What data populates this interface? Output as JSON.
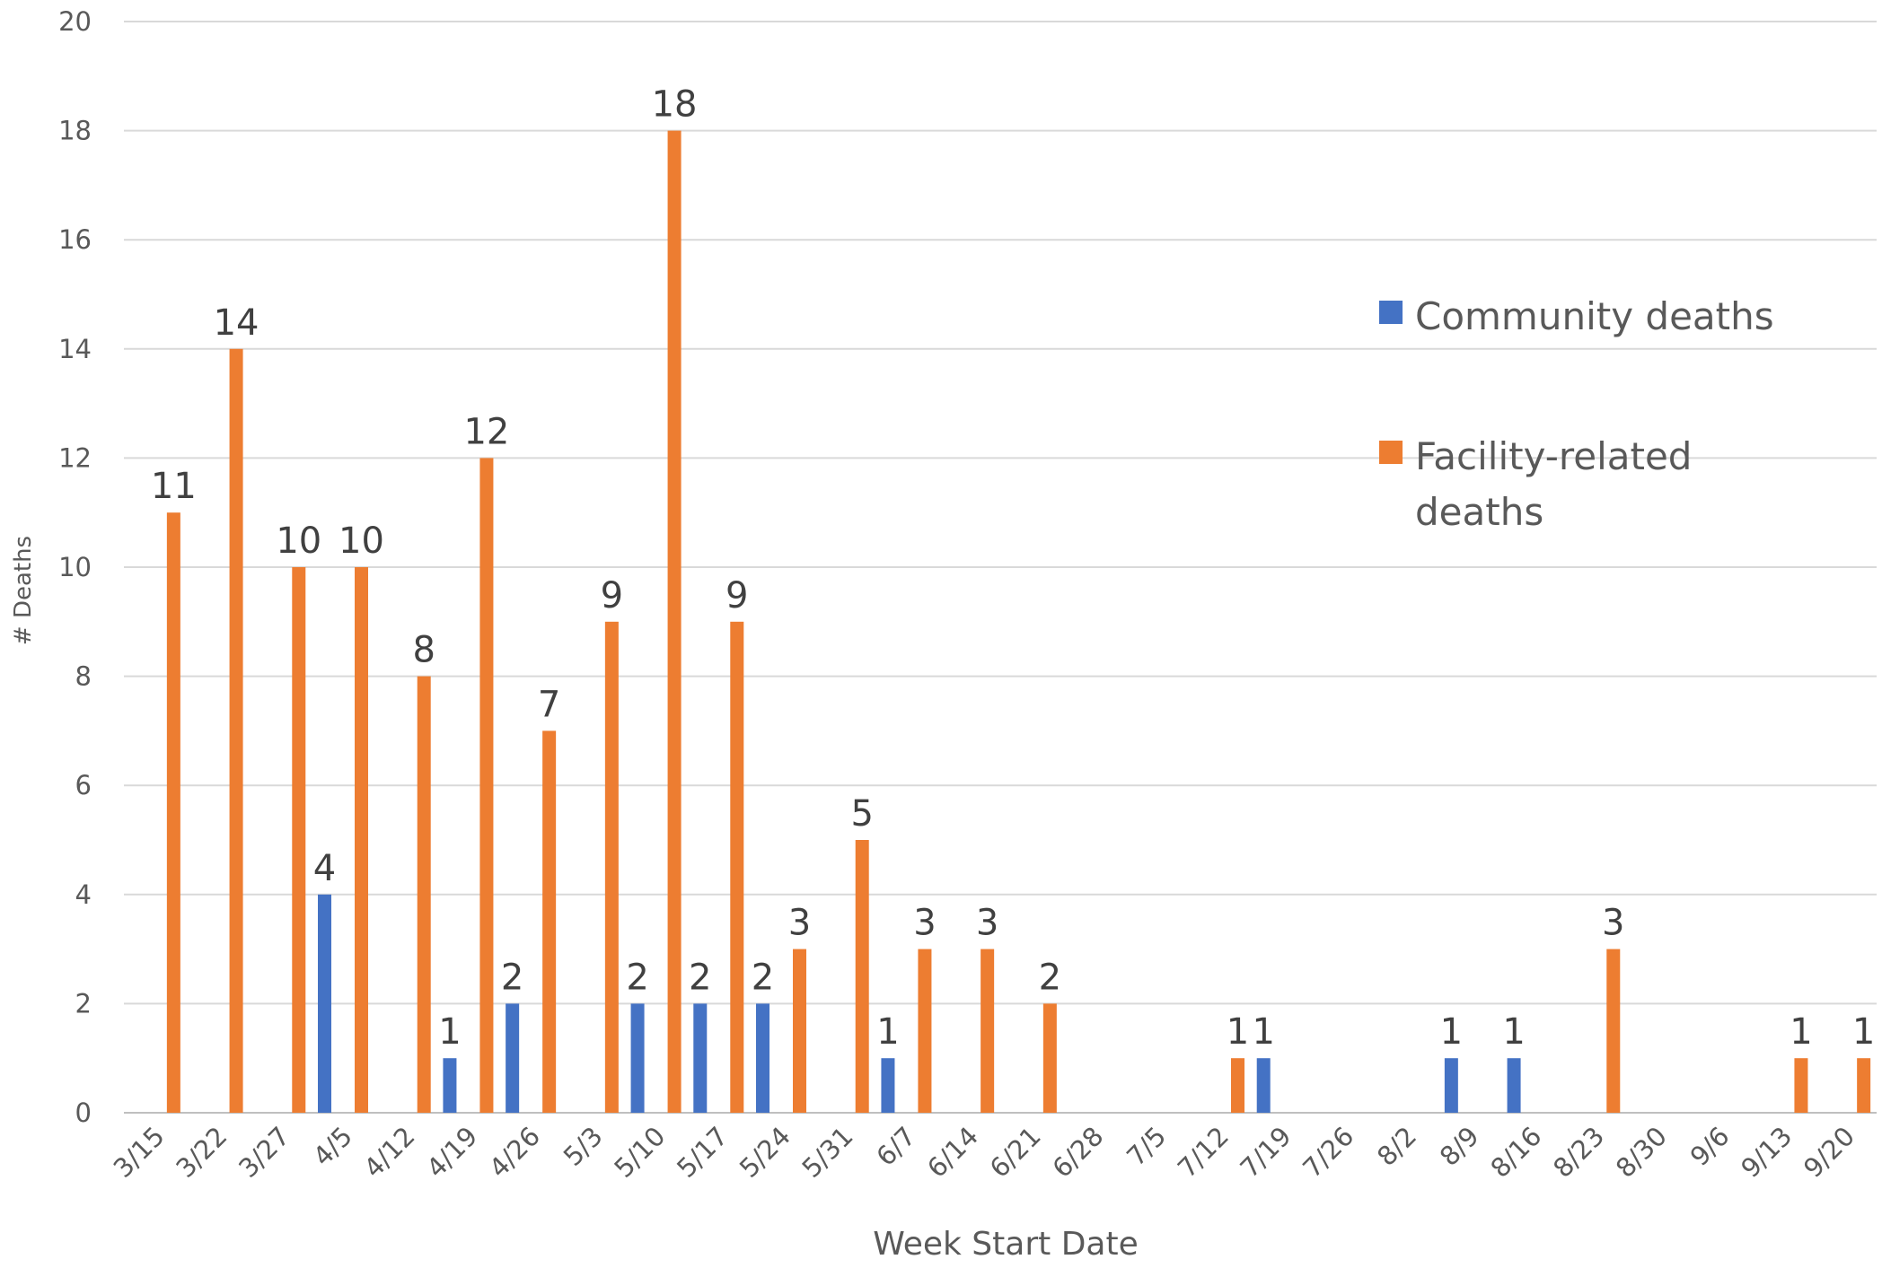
{
  "chart_data": {
    "type": "bar",
    "xlabel": "Week Start Date",
    "ylabel": "# Deaths",
    "ylim": [
      0,
      20
    ],
    "yticks": [
      0,
      2,
      4,
      6,
      8,
      10,
      12,
      14,
      16,
      18,
      20
    ],
    "grid": true,
    "legend_position": "right",
    "categories": [
      "3/15",
      "3/22",
      "3/27",
      "4/5",
      "4/12",
      "4/19",
      "4/26",
      "5/3",
      "5/10",
      "5/17",
      "5/24",
      "5/31",
      "6/7",
      "6/14",
      "6/21",
      "6/28",
      "7/5",
      "7/12",
      "7/19",
      "7/26",
      "8/2",
      "8/9",
      "8/16",
      "8/23",
      "8/30",
      "9/6",
      "9/13",
      "9/20"
    ],
    "series": [
      {
        "name": "Community deaths",
        "color": "#4472C4",
        "values": [
          null,
          null,
          null,
          4,
          null,
          1,
          2,
          null,
          2,
          2,
          2,
          null,
          1,
          null,
          null,
          null,
          null,
          null,
          1,
          null,
          null,
          1,
          1,
          null,
          null,
          null,
          null,
          null
        ]
      },
      {
        "name": "Facility-related deaths",
        "color": "#ED7D31",
        "values": [
          11,
          14,
          10,
          10,
          8,
          12,
          7,
          9,
          18,
          9,
          3,
          5,
          3,
          3,
          2,
          null,
          null,
          1,
          null,
          null,
          null,
          null,
          null,
          3,
          null,
          null,
          1,
          1
        ]
      }
    ]
  }
}
